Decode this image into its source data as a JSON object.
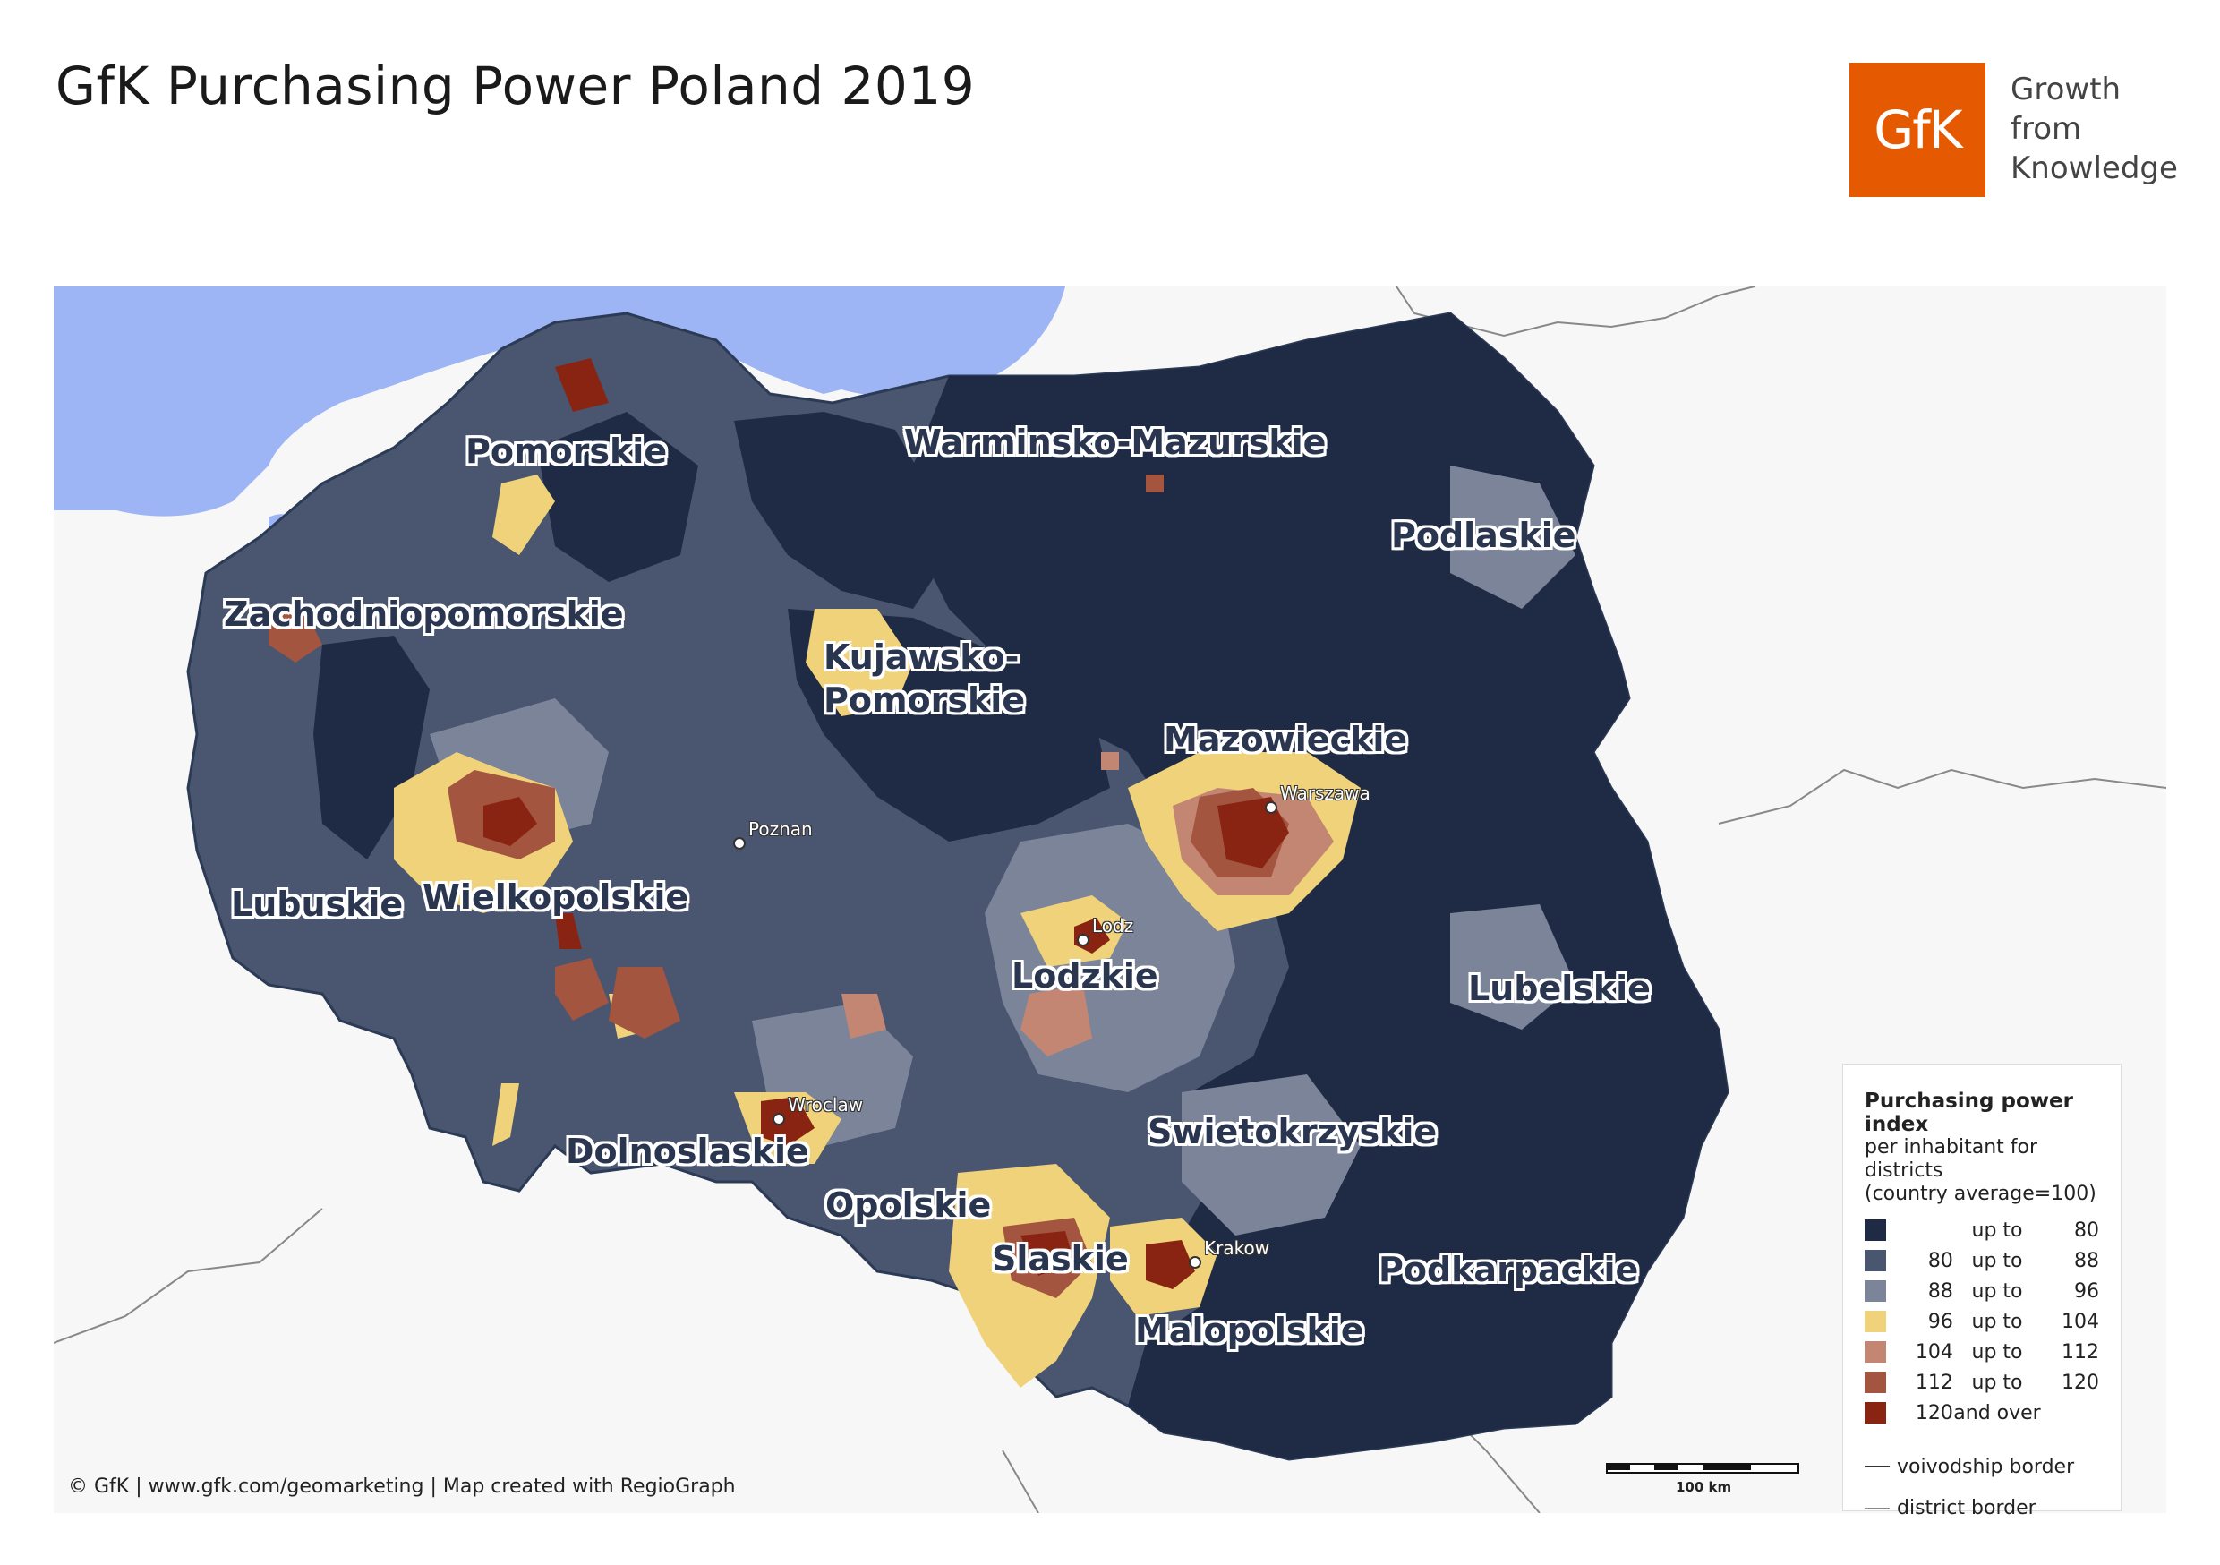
{
  "title": "GfK Purchasing Power Poland 2019",
  "logo": {
    "text": "GfK",
    "tagline": [
      "Growth",
      "from",
      "Knowledge"
    ],
    "color": "#e55a00"
  },
  "regions": [
    "Pomorskie",
    "Warminsko-Mazurskie",
    "Podlaskie",
    "Zachodniopomorskie",
    "Kujawsko-\nPomorskie",
    "Mazowieckie",
    "Wielkopolskie",
    "Lubuskie",
    "Lodzkie",
    "Lubelskie",
    "Dolnoslaskie",
    "Swietokrzyskie",
    "Opolskie",
    "Slaskie",
    "Podkarpackie",
    "Malopolskie"
  ],
  "cities": [
    "Warszawa",
    "Poznan",
    "Lodz",
    "Wroclaw",
    "Krakow"
  ],
  "legend": {
    "title": "Purchasing power index",
    "subtitle_line1": "per inhabitant for districts",
    "subtitle_line2": "(country average=100)",
    "classes": [
      {
        "from": "",
        "sep": "up to",
        "to": "80",
        "color": "#1f2a44"
      },
      {
        "from": "80",
        "sep": "up to",
        "to": "88",
        "color": "#4a5570"
      },
      {
        "from": "88",
        "sep": "up to",
        "to": "96",
        "color": "#7b8499"
      },
      {
        "from": "96",
        "sep": "up to",
        "to": "104",
        "color": "#f0d27a"
      },
      {
        "from": "104",
        "sep": "up to",
        "to": "112",
        "color": "#c28672"
      },
      {
        "from": "112",
        "sep": "up to",
        "to": "120",
        "color": "#a45540"
      },
      {
        "from": "120",
        "sep": "and over",
        "to": "",
        "color": "#8a2412"
      }
    ],
    "voivodship_border": "voivodship border",
    "district_border": "district border"
  },
  "sea_color": "#9db4f5",
  "scale_label": "100 km",
  "copyright": "© GfK | www.gfk.com/geomarketing | Map created with RegioGraph"
}
